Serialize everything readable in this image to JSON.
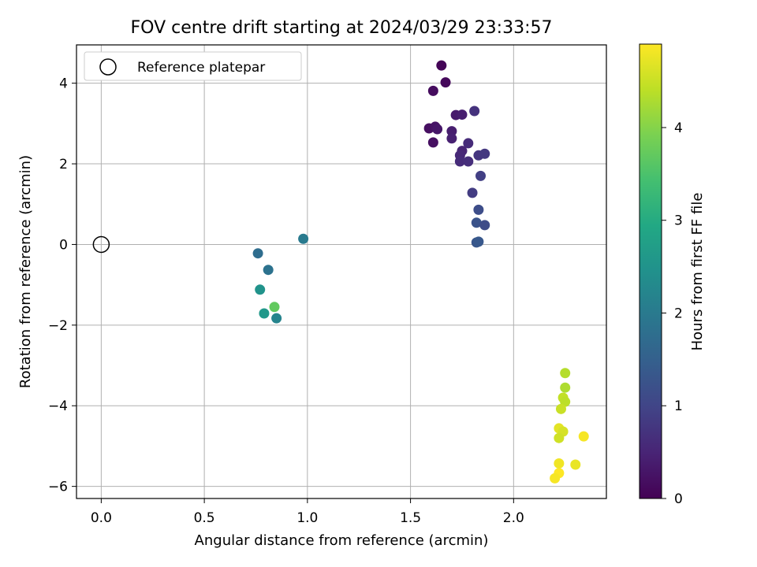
{
  "chart_data": {
    "type": "scatter",
    "title": "FOV centre drift starting at 2024/03/29 23:33:57",
    "xlabel": "Angular distance from reference (arcmin)",
    "ylabel": "Rotation from reference (arcmin)",
    "xlim": [
      -0.12,
      2.45
    ],
    "ylim": [
      -6.3,
      4.95
    ],
    "xticks": [
      0.0,
      0.5,
      1.0,
      1.5,
      2.0
    ],
    "xtick_labels": [
      "0.0",
      "0.5",
      "1.0",
      "1.5",
      "2.0"
    ],
    "yticks": [
      -6,
      -4,
      -2,
      0,
      2,
      4
    ],
    "ytick_labels": [
      "−6",
      "−4",
      "−2",
      "0",
      "2",
      "4"
    ],
    "grid": true,
    "legend": {
      "location": "top-left",
      "entries": [
        {
          "label": "Reference platepar",
          "marker": "open-circle"
        }
      ]
    },
    "reference_point": {
      "x": 0.0,
      "y": 0.0
    },
    "colorbar": {
      "label": "Hours from first FF file",
      "colormap": "viridis",
      "range": [
        0,
        4.9
      ],
      "ticks": [
        0,
        1,
        2,
        3,
        4
      ],
      "tick_labels": [
        "0",
        "1",
        "2",
        "3",
        "4"
      ]
    },
    "points": [
      {
        "x": 1.65,
        "y": 4.44,
        "c": 0.05
      },
      {
        "x": 1.67,
        "y": 4.02,
        "c": 0.1
      },
      {
        "x": 1.61,
        "y": 3.81,
        "c": 0.15
      },
      {
        "x": 1.72,
        "y": 3.21,
        "c": 0.35
      },
      {
        "x": 1.75,
        "y": 3.22,
        "c": 0.4
      },
      {
        "x": 1.81,
        "y": 3.31,
        "c": 0.7
      },
      {
        "x": 1.59,
        "y": 2.88,
        "c": 0.2
      },
      {
        "x": 1.62,
        "y": 2.92,
        "c": 0.25
      },
      {
        "x": 1.63,
        "y": 2.86,
        "c": 0.3
      },
      {
        "x": 1.7,
        "y": 2.81,
        "c": 0.4
      },
      {
        "x": 1.7,
        "y": 2.63,
        "c": 0.45
      },
      {
        "x": 1.61,
        "y": 2.53,
        "c": 0.2
      },
      {
        "x": 1.78,
        "y": 2.51,
        "c": 0.6
      },
      {
        "x": 1.75,
        "y": 2.32,
        "c": 0.5
      },
      {
        "x": 1.74,
        "y": 2.21,
        "c": 0.55
      },
      {
        "x": 1.83,
        "y": 2.21,
        "c": 0.75
      },
      {
        "x": 1.86,
        "y": 2.25,
        "c": 0.8
      },
      {
        "x": 1.74,
        "y": 2.06,
        "c": 0.6
      },
      {
        "x": 1.78,
        "y": 2.06,
        "c": 0.65
      },
      {
        "x": 1.84,
        "y": 1.7,
        "c": 0.9
      },
      {
        "x": 1.8,
        "y": 1.28,
        "c": 0.85
      },
      {
        "x": 1.83,
        "y": 0.86,
        "c": 1.15
      },
      {
        "x": 1.82,
        "y": 0.54,
        "c": 1.25
      },
      {
        "x": 1.86,
        "y": 0.48,
        "c": 1.1
      },
      {
        "x": 1.82,
        "y": 0.05,
        "c": 1.3
      },
      {
        "x": 1.83,
        "y": 0.07,
        "c": 1.35
      },
      {
        "x": 0.98,
        "y": 0.14,
        "c": 2.0
      },
      {
        "x": 0.76,
        "y": -0.22,
        "c": 1.75
      },
      {
        "x": 0.81,
        "y": -0.63,
        "c": 1.85
      },
      {
        "x": 0.77,
        "y": -1.12,
        "c": 2.5
      },
      {
        "x": 0.84,
        "y": -1.55,
        "c": 3.7
      },
      {
        "x": 0.79,
        "y": -1.71,
        "c": 2.6
      },
      {
        "x": 0.85,
        "y": -1.83,
        "c": 2.2
      },
      {
        "x": 2.25,
        "y": -3.19,
        "c": 4.35
      },
      {
        "x": 2.25,
        "y": -3.55,
        "c": 4.3
      },
      {
        "x": 2.24,
        "y": -3.8,
        "c": 4.45
      },
      {
        "x": 2.25,
        "y": -3.9,
        "c": 4.4
      },
      {
        "x": 2.23,
        "y": -4.08,
        "c": 4.5
      },
      {
        "x": 2.22,
        "y": -4.56,
        "c": 4.7
      },
      {
        "x": 2.24,
        "y": -4.64,
        "c": 4.6
      },
      {
        "x": 2.22,
        "y": -4.8,
        "c": 4.55
      },
      {
        "x": 2.34,
        "y": -4.76,
        "c": 4.85
      },
      {
        "x": 2.22,
        "y": -5.43,
        "c": 4.8
      },
      {
        "x": 2.3,
        "y": -5.46,
        "c": 4.75
      },
      {
        "x": 2.22,
        "y": -5.67,
        "c": 4.9
      },
      {
        "x": 2.2,
        "y": -5.8,
        "c": 4.85
      }
    ]
  }
}
